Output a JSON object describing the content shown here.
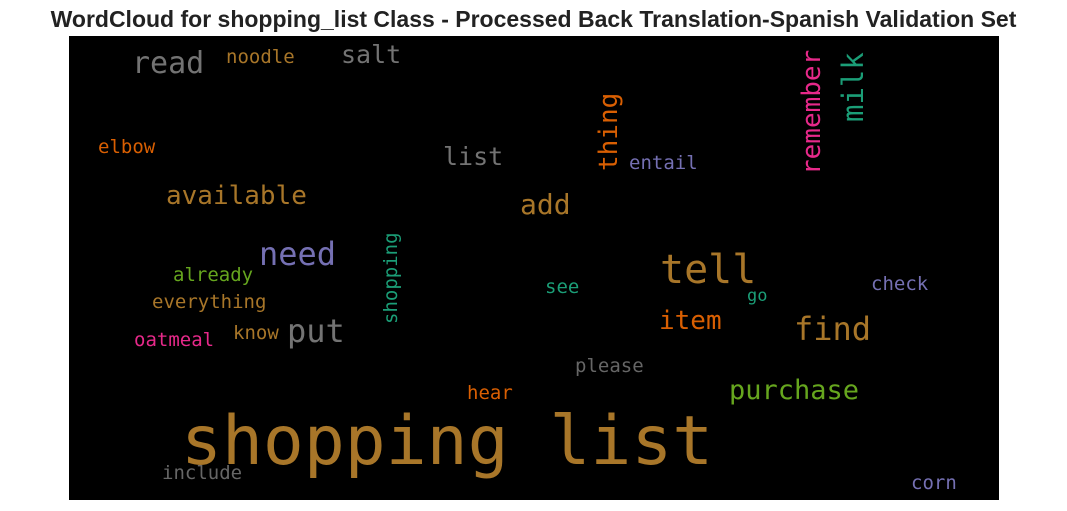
{
  "chart_data": {
    "type": "wordcloud",
    "title": "WordCloud for shopping_list Class - Processed Back Translation-Spanish Validation Set",
    "background": "#000000",
    "words": [
      {
        "text": "shopping list",
        "color": "#a87629"
      },
      {
        "text": "tell",
        "color": "#a87629"
      },
      {
        "text": "need",
        "color": "#7570b3"
      },
      {
        "text": "put",
        "color": "#737373"
      },
      {
        "text": "find",
        "color": "#a87629"
      },
      {
        "text": "read",
        "color": "#737373"
      },
      {
        "text": "purchase",
        "color": "#66a61e"
      },
      {
        "text": "milk",
        "color": "#1b9e77"
      },
      {
        "text": "add",
        "color": "#a87629"
      },
      {
        "text": "item",
        "color": "#d95f02"
      },
      {
        "text": "remember",
        "color": "#e7298a"
      },
      {
        "text": "available",
        "color": "#a87629"
      },
      {
        "text": "thing",
        "color": "#d95f02"
      },
      {
        "text": "salt",
        "color": "#737373"
      },
      {
        "text": "list",
        "color": "#737373"
      },
      {
        "text": "shopping",
        "color": "#1b9e77"
      },
      {
        "text": "noodle",
        "color": "#a87629"
      },
      {
        "text": "everything",
        "color": "#a87629"
      },
      {
        "text": "already",
        "color": "#66a61e"
      },
      {
        "text": "oatmeal",
        "color": "#e7298a"
      },
      {
        "text": "know",
        "color": "#a87629"
      },
      {
        "text": "entail",
        "color": "#7570b3"
      },
      {
        "text": "check",
        "color": "#7570b3"
      },
      {
        "text": "elbow",
        "color": "#d95f02"
      },
      {
        "text": "please",
        "color": "#666666"
      },
      {
        "text": "hear",
        "color": "#d95f02"
      },
      {
        "text": "corn",
        "color": "#7570b3"
      },
      {
        "text": "include",
        "color": "#666666"
      },
      {
        "text": "see",
        "color": "#1b9e77"
      },
      {
        "text": "go",
        "color": "#1b9e77"
      }
    ]
  }
}
